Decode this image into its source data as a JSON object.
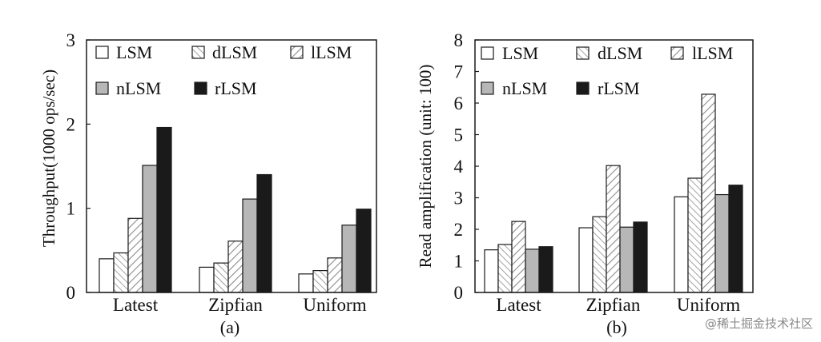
{
  "chart_data": [
    {
      "type": "bar",
      "caption": "(a)",
      "ylabel": "Throughput(1000 ops/sec)",
      "categories": [
        "Latest",
        "Zipfian",
        "Uniform"
      ],
      "yticks": [
        "0",
        "1",
        "2",
        "3"
      ],
      "ylim": [
        0,
        3
      ],
      "series": [
        {
          "name": "LSM",
          "values": [
            0.4,
            0.3,
            0.22
          ]
        },
        {
          "name": "dLSM",
          "values": [
            0.47,
            0.35,
            0.26
          ]
        },
        {
          "name": "lLSM",
          "values": [
            0.88,
            0.61,
            0.41
          ]
        },
        {
          "name": "nLSM",
          "values": [
            1.51,
            1.11,
            0.8
          ]
        },
        {
          "name": "rLSM",
          "values": [
            1.96,
            1.4,
            0.99
          ]
        }
      ],
      "legend": [
        "LSM",
        "dLSM",
        "lLSM",
        "nLSM",
        "rLSM"
      ]
    },
    {
      "type": "bar",
      "caption": "(b)",
      "ylabel": "Read amplification (unit: 100)",
      "categories": [
        "Latest",
        "Zipfian",
        "Uniform"
      ],
      "yticks": [
        "0",
        "1",
        "2",
        "3",
        "4",
        "5",
        "6",
        "7",
        "8"
      ],
      "ylim": [
        0,
        8
      ],
      "series": [
        {
          "name": "LSM",
          "values": [
            1.35,
            2.05,
            3.03
          ]
        },
        {
          "name": "dLSM",
          "values": [
            1.52,
            2.4,
            3.62
          ]
        },
        {
          "name": "lLSM",
          "values": [
            2.25,
            4.02,
            6.28
          ]
        },
        {
          "name": "nLSM",
          "values": [
            1.37,
            2.07,
            3.1
          ]
        },
        {
          "name": "rLSM",
          "values": [
            1.45,
            2.23,
            3.4
          ]
        }
      ],
      "legend": [
        "LSM",
        "dLSM",
        "lLSM",
        "nLSM",
        "rLSM"
      ]
    }
  ],
  "watermark": "@稀土掘金技术社区",
  "colors": {
    "LSM": "#ffffff",
    "nLSM": "#b7b7b7",
    "rLSM": "#1a1a1a",
    "stroke": "#1a1a1a",
    "hatch": "#8c8c8c"
  }
}
